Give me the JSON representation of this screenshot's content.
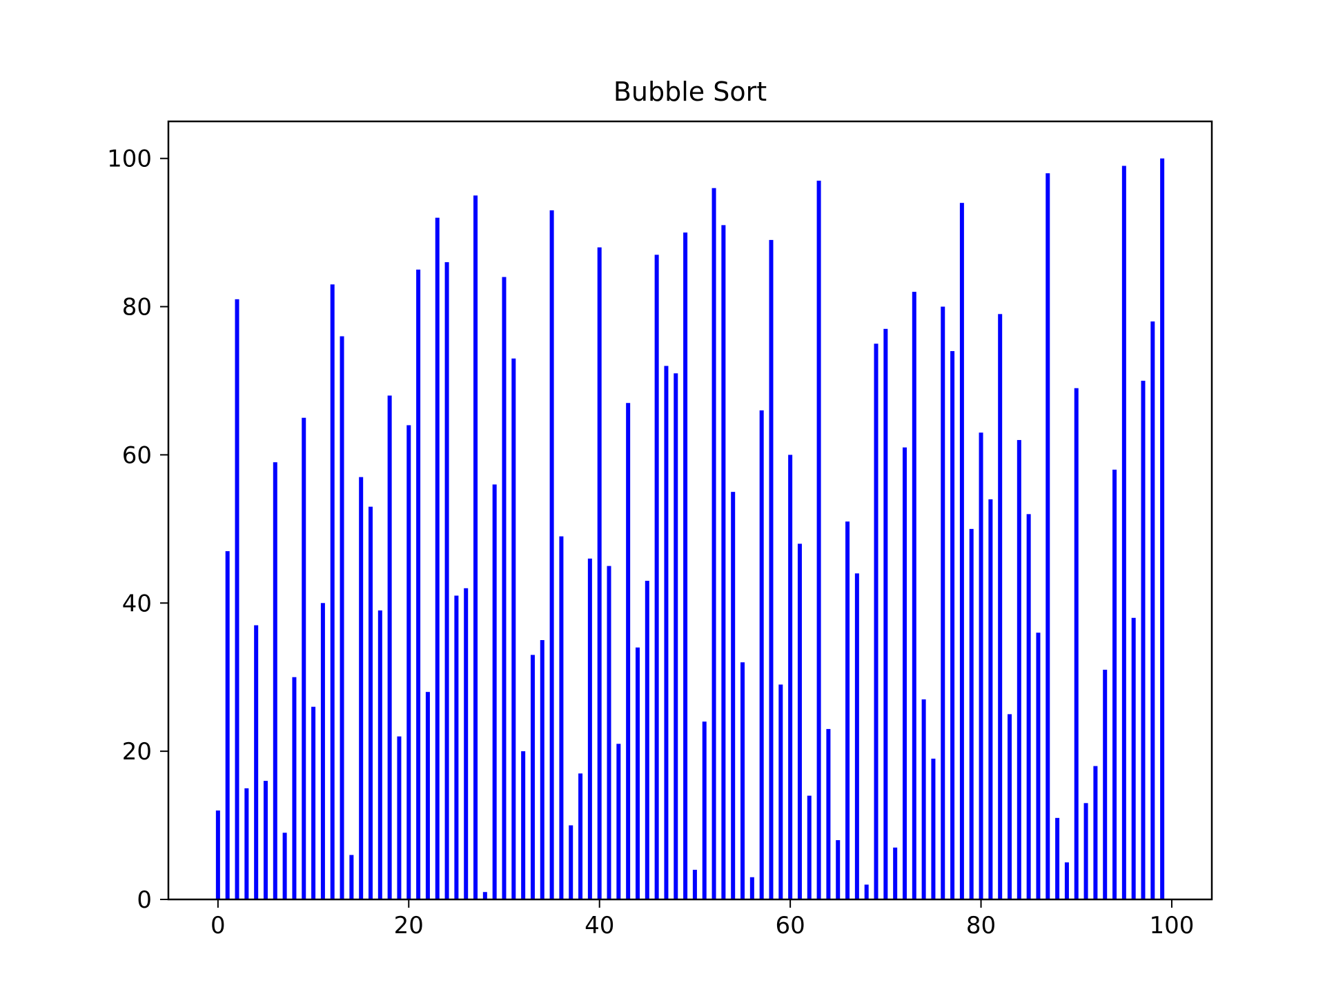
{
  "chart_data": {
    "type": "bar",
    "title": "Bubble Sort",
    "xlabel": "",
    "ylabel": "",
    "bar_color": "#0000ff",
    "x": [
      0,
      1,
      2,
      3,
      4,
      5,
      6,
      7,
      8,
      9,
      10,
      11,
      12,
      13,
      14,
      15,
      16,
      17,
      18,
      19,
      20,
      21,
      22,
      23,
      24,
      25,
      26,
      27,
      28,
      29,
      30,
      31,
      32,
      33,
      34,
      35,
      36,
      37,
      38,
      39,
      40,
      41,
      42,
      43,
      44,
      45,
      46,
      47,
      48,
      49,
      50,
      51,
      52,
      53,
      54,
      55,
      56,
      57,
      58,
      59,
      60,
      61,
      62,
      63,
      64,
      65,
      66,
      67,
      68,
      69,
      70,
      71,
      72,
      73,
      74,
      75,
      76,
      77,
      78,
      79,
      80,
      81,
      82,
      83,
      84,
      85,
      86,
      87,
      88,
      89,
      90,
      91,
      92,
      93,
      94,
      95,
      96,
      97,
      98,
      99
    ],
    "values": [
      12,
      47,
      81,
      15,
      37,
      16,
      59,
      9,
      30,
      65,
      26,
      40,
      83,
      76,
      6,
      57,
      53,
      39,
      68,
      22,
      64,
      85,
      28,
      92,
      86,
      41,
      42,
      95,
      1,
      56,
      84,
      73,
      20,
      33,
      35,
      93,
      49,
      10,
      17,
      46,
      88,
      45,
      21,
      67,
      34,
      43,
      87,
      72,
      71,
      90,
      4,
      24,
      96,
      91,
      55,
      32,
      3,
      66,
      89,
      29,
      60,
      48,
      14,
      97,
      23,
      8,
      51,
      44,
      2,
      75,
      77,
      7,
      61,
      82,
      27,
      19,
      80,
      74,
      94,
      50,
      63,
      54,
      79,
      25,
      62,
      52,
      36,
      98,
      11,
      5,
      69,
      13,
      18,
      31,
      58,
      99,
      38,
      70,
      78,
      100
    ],
    "xlim": [
      -5.2,
      104.2
    ],
    "ylim": [
      0,
      105
    ],
    "xticks": [
      0,
      20,
      40,
      60,
      80,
      100
    ],
    "yticks": [
      0,
      20,
      40,
      60,
      80,
      100
    ],
    "xtick_labels": [
      "0",
      "20",
      "40",
      "60",
      "80",
      "100"
    ],
    "ytick_labels": [
      "0",
      "20",
      "40",
      "60",
      "80",
      "100"
    ],
    "grid": false,
    "legend": false
  }
}
